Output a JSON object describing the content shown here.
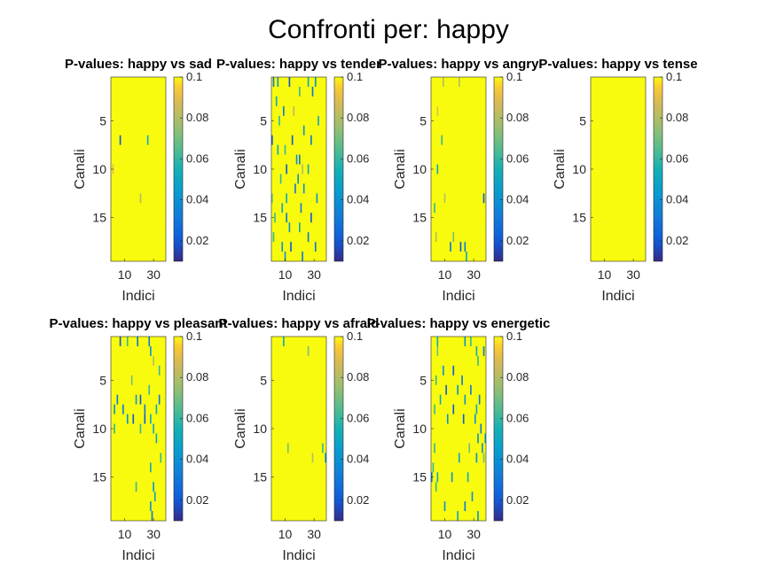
{
  "figure": {
    "title": "Confronti per: happy"
  },
  "chart_data": {
    "type": "heatmap",
    "title": "Confronti per: happy",
    "xlabel": "Indici",
    "ylabel": "Canali",
    "x_range": [
      1,
      38
    ],
    "y_range": [
      1,
      19
    ],
    "x_ticks": [
      10,
      30
    ],
    "y_ticks": [
      5,
      10,
      15
    ],
    "colorbar": {
      "range": [
        0.01,
        0.1
      ],
      "ticks": [
        0.02,
        0.04,
        0.06,
        0.08,
        0.1
      ],
      "colormap": "parula"
    },
    "background_value": 0.1,
    "panels": [
      {
        "title": "P-values: happy vs sad",
        "cells": [
          [
            7,
            7,
            0.02
          ],
          [
            10,
            2,
            0.09
          ],
          [
            13,
            21,
            0.08
          ],
          [
            7,
            26,
            0.05
          ]
        ]
      },
      {
        "title": "P-values: happy vs tender",
        "cells": [
          [
            1,
            2,
            0.03
          ],
          [
            1,
            5,
            0.04
          ],
          [
            1,
            13,
            0.02
          ],
          [
            1,
            26,
            0.05
          ],
          [
            1,
            31,
            0.04
          ],
          [
            2,
            20,
            0.06
          ],
          [
            2,
            29,
            0.03
          ],
          [
            3,
            4,
            0.05
          ],
          [
            4,
            9,
            0.03
          ],
          [
            4,
            16,
            0.08
          ],
          [
            5,
            6,
            0.06
          ],
          [
            5,
            33,
            0.05
          ],
          [
            6,
            23,
            0.04
          ],
          [
            7,
            1,
            0.02
          ],
          [
            7,
            15,
            0.02
          ],
          [
            7,
            28,
            0.03
          ],
          [
            8,
            10,
            0.06
          ],
          [
            8,
            5,
            0.05
          ],
          [
            9,
            18,
            0.04
          ],
          [
            9,
            20,
            0.03
          ],
          [
            10,
            11,
            0.02
          ],
          [
            10,
            22,
            0.08
          ],
          [
            10,
            26,
            0.05
          ],
          [
            11,
            7,
            0.06
          ],
          [
            11,
            19,
            0.04
          ],
          [
            12,
            17,
            0.03
          ],
          [
            12,
            23,
            0.04
          ],
          [
            13,
            1,
            0.07
          ],
          [
            13,
            11,
            0.05
          ],
          [
            13,
            32,
            0.04
          ],
          [
            14,
            21,
            0.03
          ],
          [
            14,
            8,
            0.05
          ],
          [
            15,
            3,
            0.06
          ],
          [
            15,
            11,
            0.03
          ],
          [
            15,
            28,
            0.02
          ],
          [
            16,
            13,
            0.04
          ],
          [
            16,
            20,
            0.05
          ],
          [
            17,
            2,
            0.06
          ],
          [
            17,
            26,
            0.03
          ],
          [
            18,
            14,
            0.02
          ],
          [
            18,
            8,
            0.04
          ],
          [
            18,
            31,
            0.03
          ],
          [
            19,
            10,
            0.04
          ],
          [
            19,
            22,
            0.03
          ]
        ]
      },
      {
        "title": "P-values: happy vs angry",
        "cells": [
          [
            1,
            9,
            0.08
          ],
          [
            1,
            20,
            0.08
          ],
          [
            4,
            5,
            0.09
          ],
          [
            7,
            8,
            0.06
          ],
          [
            10,
            5,
            0.05
          ],
          [
            13,
            37,
            0.02
          ],
          [
            13,
            10,
            0.08
          ],
          [
            14,
            3,
            0.06
          ],
          [
            17,
            16,
            0.07
          ],
          [
            17,
            4,
            0.08
          ],
          [
            18,
            14,
            0.03
          ],
          [
            18,
            21,
            0.02
          ],
          [
            18,
            24,
            0.03
          ],
          [
            19,
            25,
            0.05
          ]
        ]
      },
      {
        "title": "P-values: happy vs tense",
        "cells": []
      },
      {
        "title": "P-values: happy vs pleasant",
        "cells": [
          [
            1,
            7,
            0.02
          ],
          [
            1,
            12,
            0.06
          ],
          [
            1,
            19,
            0.03
          ],
          [
            1,
            27,
            0.03
          ],
          [
            2,
            28,
            0.04
          ],
          [
            3,
            30,
            0.08
          ],
          [
            4,
            34,
            0.06
          ],
          [
            5,
            15,
            0.07
          ],
          [
            6,
            27,
            0.06
          ],
          [
            7,
            5,
            0.03
          ],
          [
            7,
            18,
            0.04
          ],
          [
            7,
            21,
            0.02
          ],
          [
            7,
            34,
            0.03
          ],
          [
            8,
            3,
            0.04
          ],
          [
            8,
            9,
            0.03
          ],
          [
            8,
            24,
            0.03
          ],
          [
            8,
            32,
            0.05
          ],
          [
            9,
            12,
            0.04
          ],
          [
            9,
            16,
            0.02
          ],
          [
            9,
            24,
            0.02
          ],
          [
            9,
            28,
            0.05
          ],
          [
            10,
            3,
            0.06
          ],
          [
            10,
            21,
            0.06
          ],
          [
            10,
            30,
            0.05
          ],
          [
            11,
            32,
            0.05
          ],
          [
            13,
            35,
            0.06
          ],
          [
            14,
            28,
            0.05
          ],
          [
            16,
            18,
            0.06
          ],
          [
            16,
            30,
            0.04
          ],
          [
            17,
            31,
            0.05
          ],
          [
            18,
            28,
            0.04
          ],
          [
            19,
            29,
            0.03
          ]
        ]
      },
      {
        "title": "P-values: happy vs afraid",
        "cells": [
          [
            1,
            9,
            0.05
          ],
          [
            2,
            26,
            0.07
          ],
          [
            12,
            12,
            0.07
          ],
          [
            12,
            36,
            0.06
          ],
          [
            13,
            29,
            0.08
          ],
          [
            13,
            38,
            0.04
          ]
        ]
      },
      {
        "title": "P-values: happy vs energetic",
        "cells": [
          [
            1,
            5,
            0.05
          ],
          [
            1,
            24,
            0.04
          ],
          [
            1,
            28,
            0.06
          ],
          [
            2,
            5,
            0.07
          ],
          [
            2,
            32,
            0.05
          ],
          [
            2,
            37,
            0.03
          ],
          [
            3,
            33,
            0.06
          ],
          [
            4,
            9,
            0.04
          ],
          [
            4,
            16,
            0.02
          ],
          [
            5,
            4,
            0.06
          ],
          [
            5,
            22,
            0.03
          ],
          [
            6,
            11,
            0.02
          ],
          [
            6,
            19,
            0.04
          ],
          [
            6,
            28,
            0.03
          ],
          [
            7,
            7,
            0.05
          ],
          [
            7,
            24,
            0.04
          ],
          [
            7,
            34,
            0.03
          ],
          [
            8,
            3,
            0.06
          ],
          [
            8,
            16,
            0.02
          ],
          [
            8,
            32,
            0.05
          ],
          [
            9,
            12,
            0.04
          ],
          [
            9,
            23,
            0.02
          ],
          [
            9,
            31,
            0.04
          ],
          [
            10,
            35,
            0.03
          ],
          [
            11,
            33,
            0.04
          ],
          [
            11,
            38,
            0.05
          ],
          [
            12,
            3,
            0.06
          ],
          [
            12,
            27,
            0.07
          ],
          [
            12,
            36,
            0.04
          ],
          [
            13,
            20,
            0.05
          ],
          [
            13,
            32,
            0.04
          ],
          [
            13,
            37,
            0.07
          ],
          [
            14,
            2,
            0.06
          ],
          [
            15,
            1,
            0.03
          ],
          [
            15,
            5,
            0.05
          ],
          [
            15,
            15,
            0.04
          ],
          [
            15,
            26,
            0.05
          ],
          [
            16,
            4,
            0.06
          ],
          [
            17,
            29,
            0.04
          ],
          [
            18,
            10,
            0.04
          ],
          [
            18,
            24,
            0.03
          ],
          [
            19,
            19,
            0.05
          ],
          [
            19,
            33,
            0.04
          ]
        ]
      }
    ]
  }
}
